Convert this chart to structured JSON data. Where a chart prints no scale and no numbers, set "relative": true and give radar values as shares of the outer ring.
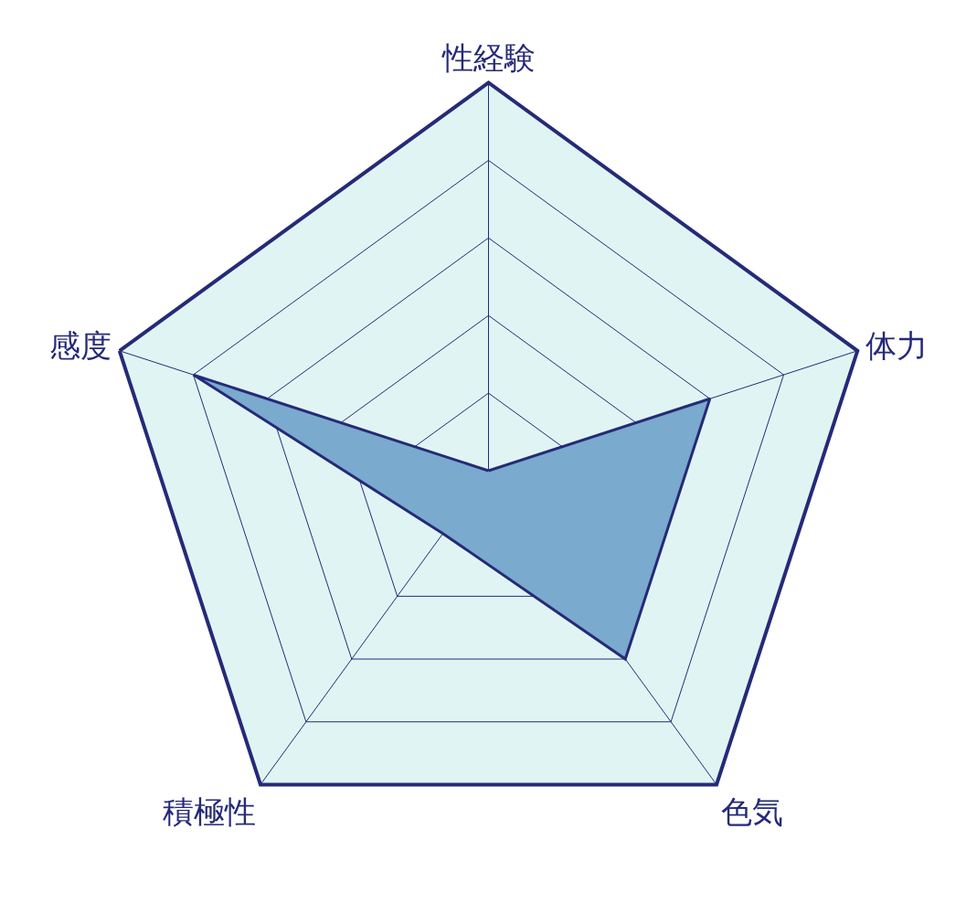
{
  "chart_data": {
    "type": "radar",
    "relative": true,
    "categories": [
      "性経験",
      "体力",
      "色気",
      "積極性",
      "感度"
    ],
    "series": [
      {
        "color": "#7aaacd",
        "values": [
          0,
          0.6,
          0.6,
          0.2,
          0.8
        ]
      }
    ]
  }
}
